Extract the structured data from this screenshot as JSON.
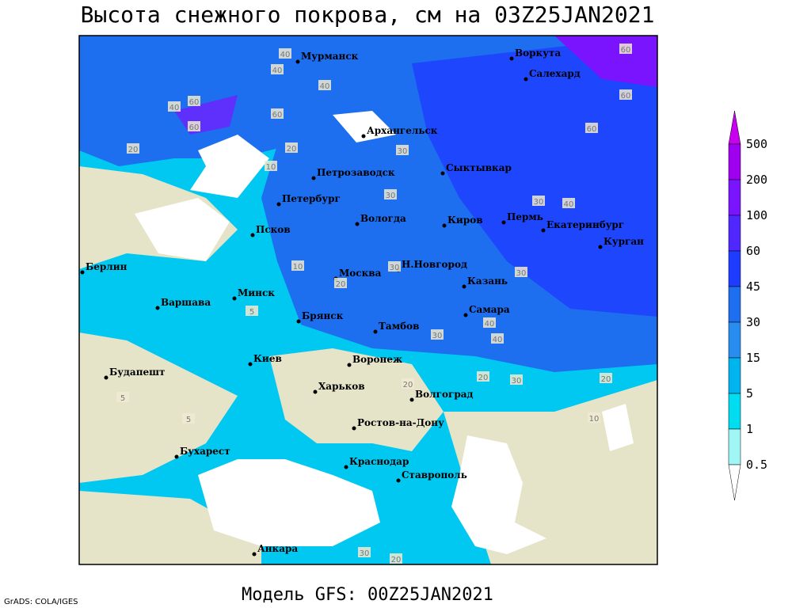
{
  "title": "Высота снежного покрова, см на 03Z25JAN2021",
  "footer": "Модель GFS: 00Z25JAN2021",
  "credit": "GrADS: COLA/IGES",
  "cities": [
    "Мурманск",
    "Воркута",
    "Салехард",
    "Архангельск",
    "Петрозаводск",
    "Сыктывкар",
    "Петербург",
    "Вологда",
    "Киров",
    "Пермь",
    "Екатеринбург",
    "Курган",
    "Псков",
    "Н.Новгород",
    "Москва",
    "Казань",
    "Берлин",
    "Минск",
    "Самара",
    "Варшава",
    "Брянск",
    "Тамбов",
    "Киев",
    "Воронеж",
    "Харьков",
    "Будапешт",
    "Волгоград",
    "Ростов-на-Дону",
    "Бухарест",
    "Краснодар",
    "Ставрополь",
    "Анкара"
  ],
  "contour_labels": [
    60,
    40,
    60,
    40,
    60,
    40,
    20,
    60,
    40,
    20,
    60,
    60,
    10,
    30,
    30,
    30,
    40,
    30,
    10,
    30,
    20,
    40,
    40,
    30,
    30,
    20,
    20,
    10,
    5,
    5,
    5,
    20,
    30,
    20
  ],
  "legend": {
    "ticks": [
      500,
      200,
      100,
      60,
      45,
      30,
      15,
      5,
      1,
      0.5
    ],
    "colors": [
      "#c800f0",
      "#a000f0",
      "#7a14ff",
      "#5028ff",
      "#1e3cff",
      "#1e6ef0",
      "#288cf0",
      "#00b4f0",
      "#00dcf0",
      "#a0f5f5",
      "#ffffff"
    ]
  }
}
